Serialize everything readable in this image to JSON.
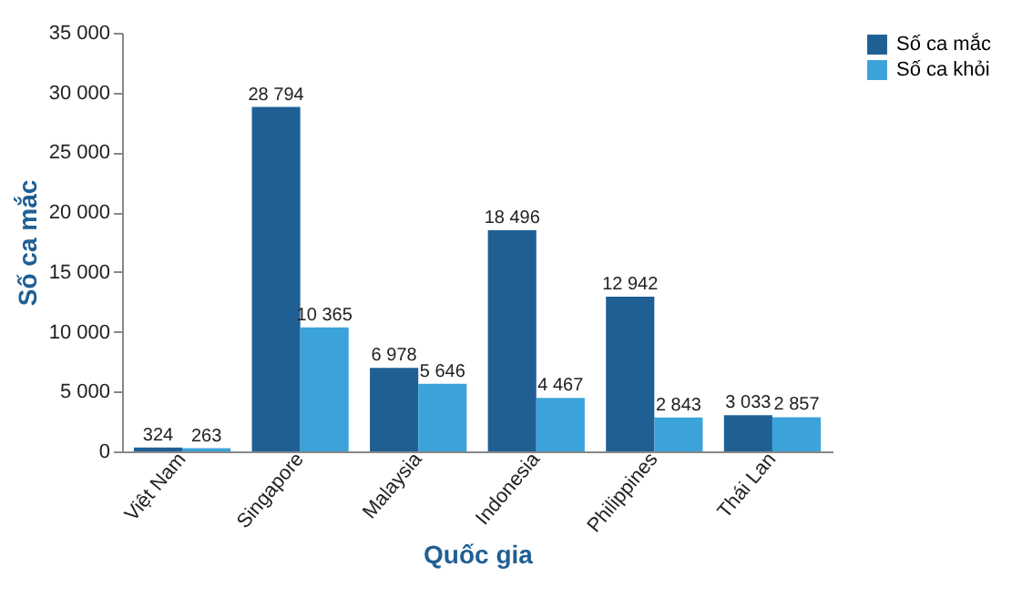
{
  "chart_data": {
    "type": "bar",
    "xlabel": "Quốc gia",
    "ylabel": "Số ca mắc",
    "categories": [
      "Việt Nam",
      "Singapore",
      "Malaysia",
      "Indonesia",
      "Philippines",
      "Thái Lan"
    ],
    "series": [
      {
        "name": "Số ca mắc",
        "color": "#1f5f94",
        "values": [
          324,
          28794,
          6978,
          18496,
          12942,
          3033
        ],
        "value_labels": [
          "324",
          "28 794",
          "6 978",
          "18 496",
          "12 942",
          "3 033"
        ]
      },
      {
        "name": "Số ca khỏi",
        "color": "#3ba3d9",
        "values": [
          263,
          10365,
          5646,
          4467,
          2843,
          2857
        ],
        "value_labels": [
          "263",
          "10 365",
          "5 646",
          "4 467",
          "2 843",
          "2 857"
        ]
      }
    ],
    "ylim": [
      0,
      35000
    ],
    "yticks": [
      {
        "value": 0,
        "label": "0"
      },
      {
        "value": 5000,
        "label": "5 000"
      },
      {
        "value": 10000,
        "label": "10 000"
      },
      {
        "value": 15000,
        "label": "15 000"
      },
      {
        "value": 20000,
        "label": "20 000"
      },
      {
        "value": 25000,
        "label": "25 000"
      },
      {
        "value": 30000,
        "label": "30 000"
      },
      {
        "value": 35000,
        "label": "35 000"
      }
    ],
    "grid": false,
    "legend": "right"
  }
}
